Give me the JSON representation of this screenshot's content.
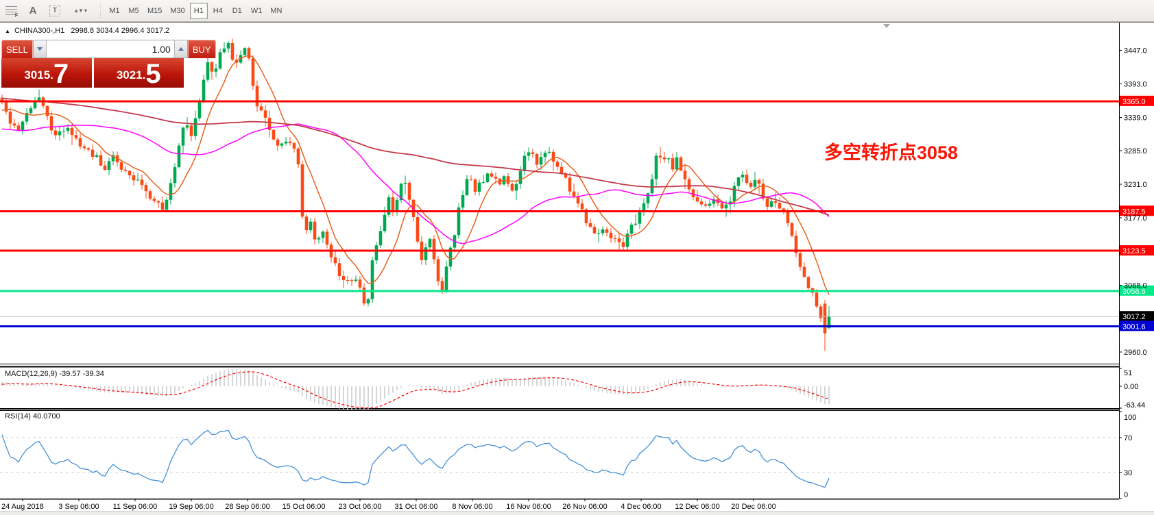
{
  "toolbar": {
    "tools": [
      {
        "name": "fibonacci-tool",
        "glyph": "F"
      },
      {
        "name": "text-tool",
        "glyph": "A"
      },
      {
        "name": "textbox-tool",
        "glyph": "T"
      },
      {
        "name": "arrows-tool",
        "glyph": "▲▼"
      }
    ],
    "dropdown_caret": "▾",
    "timeframes": [
      "M1",
      "M5",
      "M15",
      "M30",
      "H1",
      "H4",
      "D1",
      "W1",
      "MN"
    ],
    "active_timeframe": "H1"
  },
  "symbol_header": {
    "collapse_icon": "▲",
    "symbol_period": "CHINA300-,H1",
    "ohlc_text": "2998.8 3034.4 2996.4 3017.2"
  },
  "trade_panel": {
    "sell_label": "SELL",
    "buy_label": "BUY",
    "volume": "1.00",
    "sell_price": {
      "main": "3015.",
      "big": "7"
    },
    "buy_price": {
      "main": "3021.",
      "big": "5"
    }
  },
  "annotation": {
    "text": "多空转折点3058",
    "color": "#fa1505"
  },
  "chart_data": {
    "type": "candlestick",
    "symbol": "CHINA300-",
    "period": "H1",
    "last_ohlc": {
      "open": 2998.8,
      "high": 3034.4,
      "low": 2996.4,
      "close": 3017.2
    },
    "y_range": [
      2940,
      3492
    ],
    "y_ticks": [
      {
        "label": "3447.0",
        "value": 3447
      },
      {
        "label": "3393.0",
        "value": 3393
      },
      {
        "label": "3339.0",
        "value": 3339
      },
      {
        "label": "3285.0",
        "value": 3285
      },
      {
        "label": "3231.0",
        "value": 3231
      },
      {
        "label": "3177.0",
        "value": 3177
      },
      {
        "label": "3068.0",
        "value": 3068
      },
      {
        "label": "2960.0",
        "value": 2960
      }
    ],
    "levels": [
      {
        "label": "3365.0",
        "value": 3365.0,
        "color": "#ff0000",
        "width": 3
      },
      {
        "label": "3187.5",
        "value": 3187.5,
        "color": "#ff0000",
        "width": 3
      },
      {
        "label": "3123.5",
        "value": 3123.5,
        "color": "#ff0000",
        "width": 3
      },
      {
        "label": "3058.6",
        "value": 3058.6,
        "color": "#00e889",
        "width": 3
      },
      {
        "label": "3017.2",
        "value": 3017.2,
        "color": "#bdbdbd",
        "label_bg": "#000000",
        "width": 1
      },
      {
        "label": "3001.6",
        "value": 3001.6,
        "color": "#0000d2",
        "width": 3
      }
    ],
    "candles": {
      "count": 202,
      "spacing_px": 6,
      "up_color": "#00a94f",
      "down_color": "#fa4a15",
      "close_waypoints": [
        [
          0,
          3372
        ],
        [
          12,
          3340
        ],
        [
          25,
          3318
        ],
        [
          40,
          3350
        ],
        [
          55,
          3377
        ],
        [
          68,
          3340
        ],
        [
          80,
          3305
        ],
        [
          95,
          3322
        ],
        [
          108,
          3305
        ],
        [
          122,
          3288
        ],
        [
          138,
          3278
        ],
        [
          152,
          3255
        ],
        [
          165,
          3272
        ],
        [
          178,
          3258
        ],
        [
          192,
          3240
        ],
        [
          205,
          3230
        ],
        [
          220,
          3212
        ],
        [
          235,
          3190
        ],
        [
          248,
          3222
        ],
        [
          260,
          3285
        ],
        [
          270,
          3335
        ],
        [
          280,
          3310
        ],
        [
          292,
          3375
        ],
        [
          302,
          3428
        ],
        [
          312,
          3402
        ],
        [
          322,
          3448
        ],
        [
          334,
          3458
        ],
        [
          342,
          3425
        ],
        [
          352,
          3445
        ],
        [
          360,
          3452
        ],
        [
          368,
          3395
        ],
        [
          376,
          3355
        ],
        [
          386,
          3345
        ],
        [
          396,
          3305
        ],
        [
          406,
          3290
        ],
        [
          416,
          3302
        ],
        [
          428,
          3300
        ],
        [
          436,
          3255
        ],
        [
          443,
          3155
        ],
        [
          452,
          3172
        ],
        [
          462,
          3135
        ],
        [
          472,
          3152
        ],
        [
          482,
          3118
        ],
        [
          492,
          3092
        ],
        [
          502,
          3075
        ],
        [
          512,
          3082
        ],
        [
          522,
          3068
        ],
        [
          530,
          3045
        ],
        [
          536,
          3030
        ],
        [
          542,
          3108
        ],
        [
          552,
          3148
        ],
        [
          560,
          3165
        ],
        [
          565,
          3218
        ],
        [
          572,
          3185
        ],
        [
          580,
          3202
        ],
        [
          588,
          3242
        ],
        [
          595,
          3218
        ],
        [
          602,
          3178
        ],
        [
          609,
          3140
        ],
        [
          614,
          3102
        ],
        [
          620,
          3122
        ],
        [
          627,
          3142
        ],
        [
          634,
          3098
        ],
        [
          641,
          3068
        ],
        [
          647,
          3062
        ],
        [
          654,
          3120
        ],
        [
          661,
          3142
        ],
        [
          669,
          3192
        ],
        [
          677,
          3225
        ],
        [
          684,
          3240
        ],
        [
          692,
          3222
        ],
        [
          701,
          3232
        ],
        [
          711,
          3250
        ],
        [
          720,
          3248
        ],
        [
          728,
          3230
        ],
        [
          736,
          3242
        ],
        [
          746,
          3222
        ],
        [
          756,
          3242
        ],
        [
          766,
          3280
        ],
        [
          774,
          3288
        ],
        [
          781,
          3258
        ],
        [
          790,
          3272
        ],
        [
          800,
          3288
        ],
        [
          810,
          3265
        ],
        [
          820,
          3248
        ],
        [
          830,
          3225
        ],
        [
          840,
          3200
        ],
        [
          850,
          3185
        ],
        [
          858,
          3160
        ],
        [
          868,
          3148
        ],
        [
          878,
          3162
        ],
        [
          888,
          3152
        ],
        [
          898,
          3140
        ],
        [
          906,
          3128
        ],
        [
          915,
          3148
        ],
        [
          925,
          3168
        ],
        [
          934,
          3188
        ],
        [
          942,
          3210
        ],
        [
          950,
          3230
        ],
        [
          958,
          3285
        ],
        [
          965,
          3270
        ],
        [
          972,
          3282
        ],
        [
          980,
          3258
        ],
        [
          988,
          3272
        ],
        [
          996,
          3250
        ],
        [
          1004,
          3222
        ],
        [
          1012,
          3208
        ],
        [
          1022,
          3198
        ],
        [
          1032,
          3195
        ],
        [
          1042,
          3205
        ],
        [
          1052,
          3198
        ],
        [
          1062,
          3192
        ],
        [
          1072,
          3228
        ],
        [
          1080,
          3258
        ],
        [
          1088,
          3240
        ],
        [
          1096,
          3228
        ],
        [
          1104,
          3238
        ],
        [
          1112,
          3210
        ],
        [
          1120,
          3198
        ],
        [
          1128,
          3210
        ],
        [
          1136,
          3195
        ],
        [
          1144,
          3185
        ],
        [
          1152,
          3155
        ],
        [
          1160,
          3128
        ],
        [
          1168,
          3098
        ],
        [
          1176,
          3072
        ],
        [
          1184,
          3058
        ],
        [
          1190,
          3040
        ],
        [
          1196,
          3020
        ],
        [
          1201,
          2990
        ],
        [
          1209,
          3017
        ]
      ]
    },
    "moving_averages": [
      {
        "name": "fast",
        "window": 9,
        "color": "#e8611c"
      },
      {
        "name": "medium",
        "window": 40,
        "color": "#ff00ff"
      },
      {
        "name": "slow",
        "window": 130,
        "color": "#c33a4a"
      }
    ],
    "macd": {
      "title": "MACD(12,26,9) -39.57 -39.34",
      "fast": 12,
      "slow": 26,
      "signal": 9,
      "current": [
        -39.57,
        -39.34
      ],
      "range": [
        -63.44,
        51
      ],
      "ticks": [
        {
          "label": "51",
          "value": 51
        },
        {
          "label": "0.00",
          "value": 0
        },
        {
          "label": "-63.44",
          "value": -63.44
        }
      ],
      "histogram_color": "#c9c9c9",
      "signal_color": "#ff0000"
    },
    "rsi": {
      "title": "RSI(14) 40.0700",
      "period": 14,
      "current": 40.07,
      "range": [
        0,
        100
      ],
      "ticks": [
        {
          "label": "100",
          "value": 100
        },
        {
          "label": "70",
          "value": 70
        },
        {
          "label": "30",
          "value": 30
        },
        {
          "label": "0",
          "value": 0
        }
      ],
      "levels": [
        70,
        30
      ],
      "color": "#4390d8"
    },
    "x_labels": [
      "24 Aug 2018",
      "3 Sep 06:00",
      "11 Sep 06:00",
      "19 Sep 06:00",
      "28 Sep 06:00",
      "15 Oct 06:00",
      "23 Oct 06:00",
      "31 Oct 06:00",
      "8 Nov 06:00",
      "16 Nov 06:00",
      "26 Nov 06:00",
      "4 Dec 06:00",
      "12 Dec 06:00",
      "20 Dec 06:00"
    ]
  }
}
